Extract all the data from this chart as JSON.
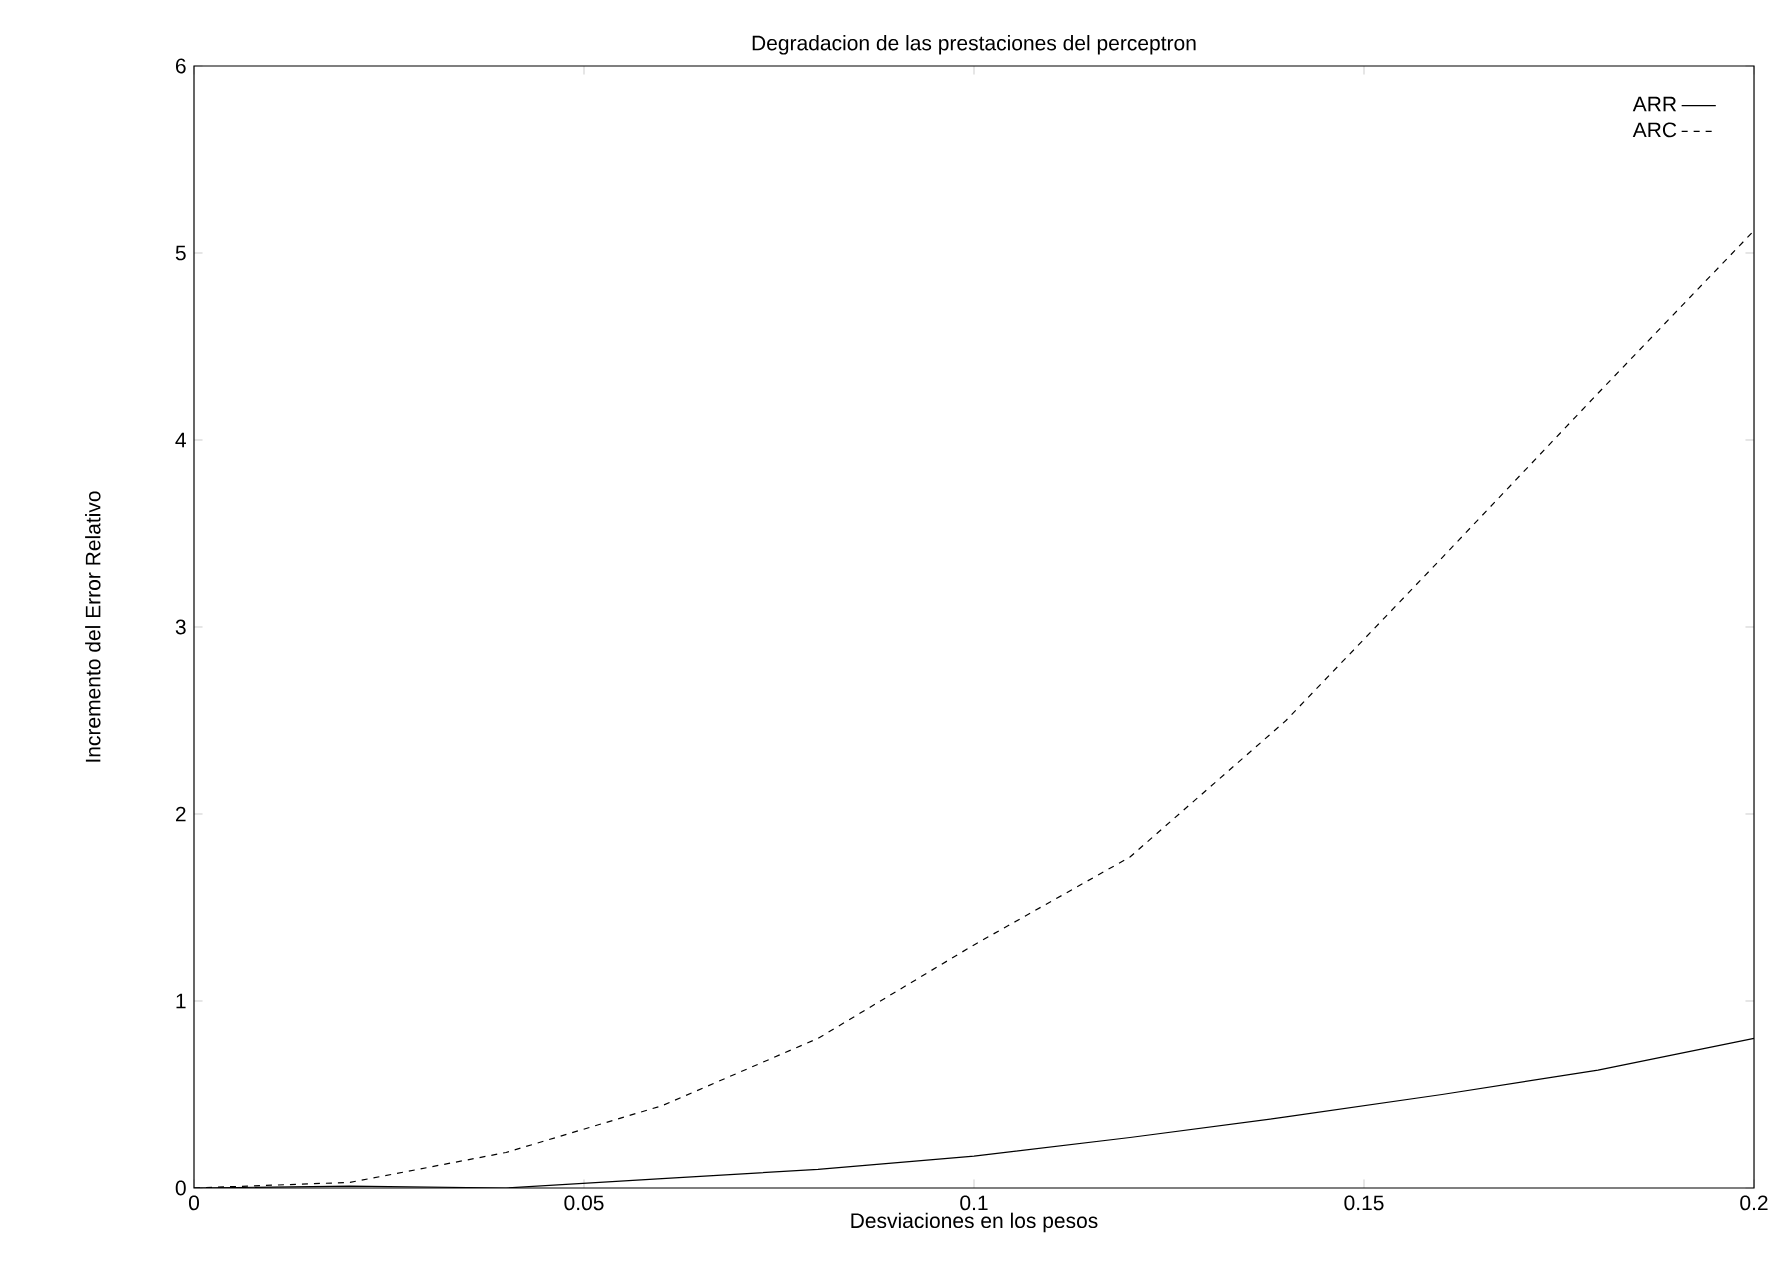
{
  "chart_data": {
    "type": "line",
    "title": "Degradacion de las prestaciones del perceptron",
    "xlabel": "Desviaciones en los pesos",
    "ylabel": "Incremento del Error Relativo",
    "x": [
      0,
      0.02,
      0.04,
      0.06,
      0.08,
      0.1,
      0.12,
      0.14,
      0.16,
      0.18,
      0.2
    ],
    "series": [
      {
        "name": "ARR",
        "color": "#000000",
        "line_style": "solid",
        "values": [
          0,
          0.01,
          0,
          0.05,
          0.1,
          0.17,
          0.27,
          0.38,
          0.5,
          0.63,
          0.8
        ]
      },
      {
        "name": "ARC",
        "color": "#000000",
        "line_style": "dashed",
        "values": [
          0,
          0.03,
          0.19,
          0.44,
          0.8,
          1.3,
          1.77,
          2.5,
          3.37,
          4.25,
          5.12
        ]
      }
    ],
    "xlim": [
      0,
      0.2
    ],
    "xticks": [
      0,
      0.05,
      0.1,
      0.15,
      0.2
    ],
    "ylim": [
      0,
      6
    ],
    "yticks": [
      0,
      1,
      2,
      3,
      4,
      5,
      6
    ],
    "grid": false,
    "legend": "top right"
  }
}
